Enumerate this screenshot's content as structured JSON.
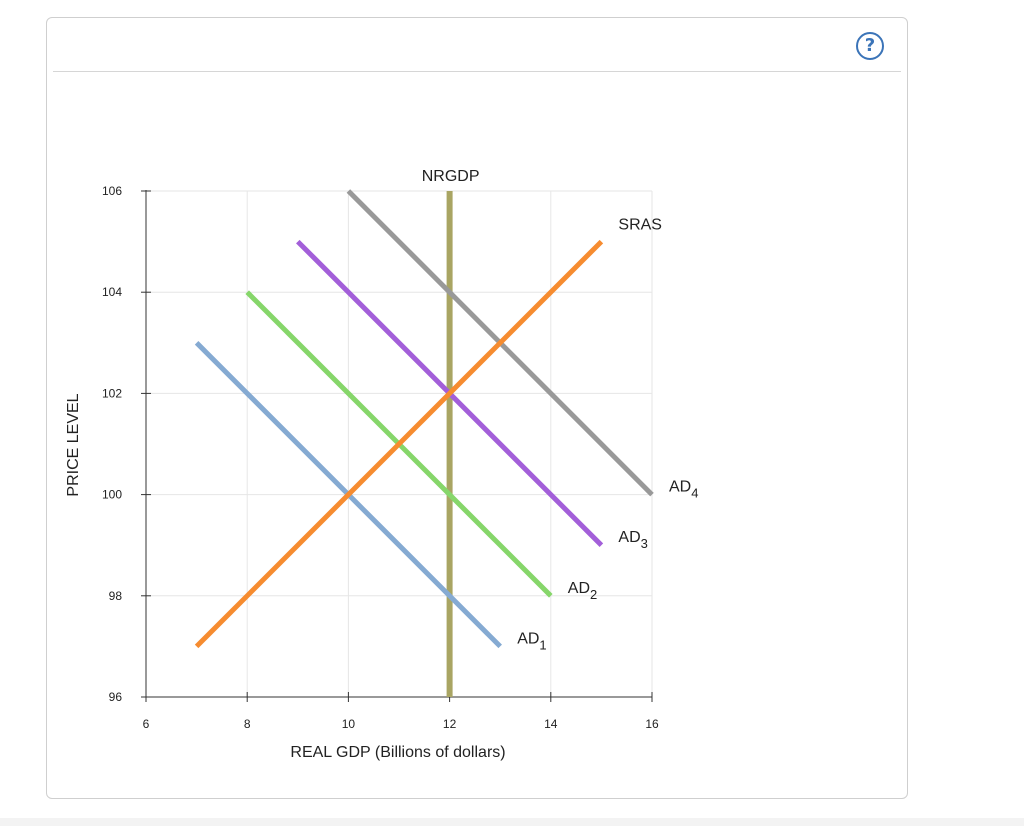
{
  "help": {
    "glyph": "?",
    "icon": "help-icon",
    "color": "#3b74b8"
  },
  "chart_data": {
    "type": "line",
    "xlabel": "REAL GDP (Billions of dollars)",
    "ylabel": "PRICE LEVEL",
    "xlim": [
      6,
      16
    ],
    "ylim": [
      96,
      106
    ],
    "xticks": [
      "6",
      "8",
      "10",
      "12",
      "14",
      "16"
    ],
    "yticks": [
      "96",
      "98",
      "100",
      "102",
      "104",
      "106"
    ],
    "grid": true,
    "series": [
      {
        "name": "AD",
        "sub": "1",
        "color": "#85aad2",
        "points": [
          [
            7,
            103
          ],
          [
            13,
            97
          ]
        ]
      },
      {
        "name": "AD",
        "sub": "2",
        "color": "#86d66a",
        "points": [
          [
            8,
            104
          ],
          [
            14,
            98
          ]
        ]
      },
      {
        "name": "AD",
        "sub": "3",
        "color": "#a35fd9",
        "points": [
          [
            9,
            105
          ],
          [
            15,
            99
          ]
        ]
      },
      {
        "name": "AD",
        "sub": "4",
        "color": "#999999",
        "points": [
          [
            10,
            106
          ],
          [
            16,
            100
          ]
        ]
      },
      {
        "name": "SRAS",
        "sub": "",
        "color": "#f68c30",
        "points": [
          [
            7,
            97
          ],
          [
            15,
            105
          ]
        ]
      },
      {
        "name": "NRGDP",
        "sub": "",
        "color": "#a9a563",
        "points": [
          [
            12,
            96
          ],
          [
            12,
            106
          ]
        ]
      }
    ]
  }
}
